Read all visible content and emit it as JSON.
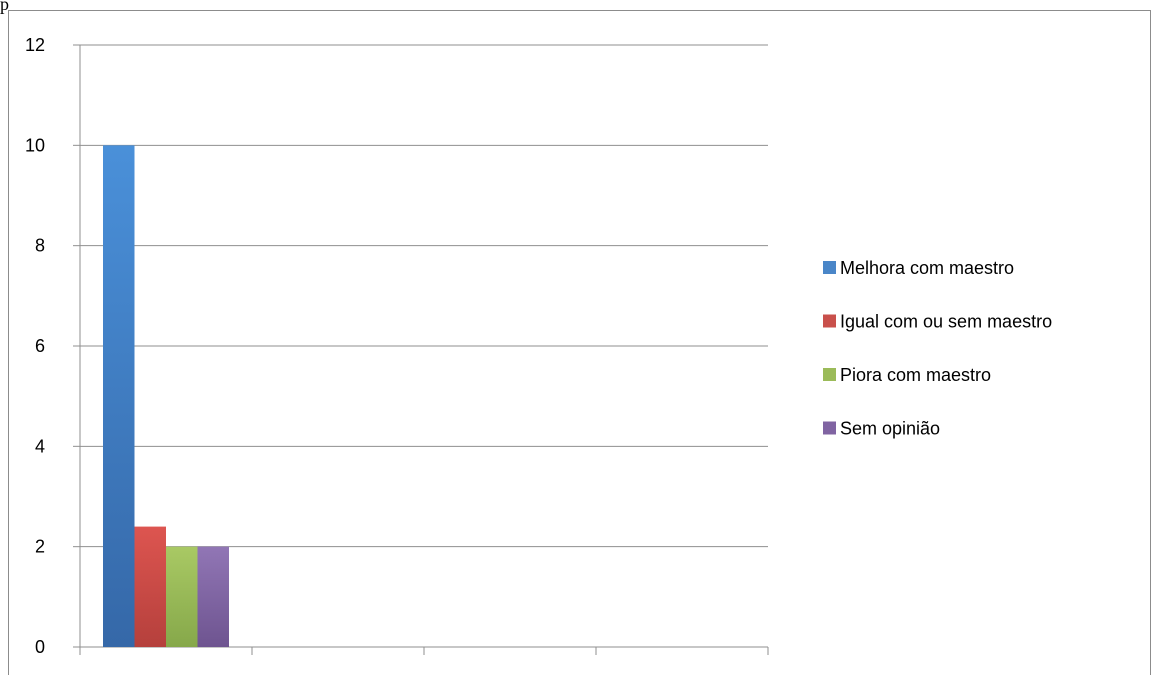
{
  "header": {
    "fragment_text": "p"
  },
  "chart_data": {
    "type": "bar",
    "title": "",
    "xlabel": "",
    "ylabel": "",
    "ylim": [
      0,
      12
    ],
    "yticks": [
      0,
      2,
      4,
      6,
      8,
      10,
      12
    ],
    "grid": true,
    "legend_position": "right",
    "category_slots": 4,
    "series": [
      {
        "name": "Melhora com maestro",
        "color": "#4a86c8",
        "values": [
          10
        ]
      },
      {
        "name": "Igual com ou sem maestro",
        "color": "#c9504b",
        "values": [
          2.4
        ]
      },
      {
        "name": "Piora com maestro",
        "color": "#9bbb59",
        "values": [
          2
        ]
      },
      {
        "name": "Sem opinião",
        "color": "#8064a2",
        "values": [
          2
        ]
      }
    ]
  }
}
